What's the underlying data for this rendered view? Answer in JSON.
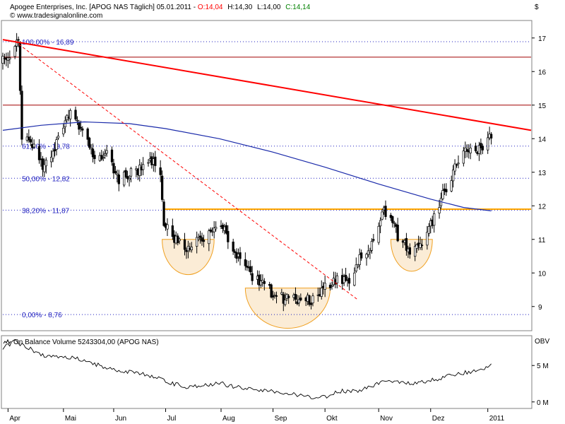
{
  "header": {
    "instrument": "Apogee Enterprises, Inc. [APOG NAS  Täglich] 05.01.2011",
    "open": "O:14,04",
    "high": "H:14,30",
    "low": "L:14,00",
    "close": "C:14,14",
    "website": "© www.tradesignalonline.com"
  },
  "indicator": {
    "title": "On Balance Volume 5243304,00 (APOG NAS)",
    "axis_unit": "OBV"
  },
  "colors": {
    "bullish": "#ffffff",
    "bearish": "#000000",
    "red_trend": "#ff0000",
    "dark_red_line": "#a00000",
    "ma": "#1a2aaa",
    "neckline": "#ffa500",
    "cup_fill": "#fbecd6",
    "cup_stroke": "#f0a020",
    "fib": "#2020c0",
    "open_label": "#ff0000",
    "close_label": "#008000"
  },
  "chart_data": [
    {
      "type": "candlestick",
      "panel": "price",
      "y_unit": "$",
      "ylim": [
        8.3,
        17.5
      ],
      "y_ticks": [
        9,
        10,
        11,
        12,
        13,
        14,
        15,
        16,
        17
      ],
      "x_labels": [
        "Apr",
        "Mai",
        "Jun",
        "Jul",
        "Aug",
        "Sep",
        "Okt",
        "Nov",
        "Dez",
        "2011"
      ],
      "x_label_dates": [
        "2010-04-01",
        "2010-05-03",
        "2010-06-01",
        "2010-07-01",
        "2010-08-02",
        "2010-09-01",
        "2010-10-01",
        "2010-11-01",
        "2010-12-01",
        "2011-01-03"
      ],
      "xlim": [
        "2010-03-29",
        "2011-01-28"
      ],
      "fibonacci_levels": [
        {
          "label": "100,00% - 16,89",
          "value": 16.89
        },
        {
          "label": "61,80% - 13,78",
          "value": 13.78
        },
        {
          "label": "50,00% - 12,82",
          "value": 12.82
        },
        {
          "label": "38,20% - 11,87",
          "value": 11.87
        },
        {
          "label": "0,00% - 8,76",
          "value": 8.76
        }
      ],
      "horizontal_lines": [
        {
          "name": "resistance-16-4",
          "value": 16.43
        },
        {
          "name": "resistance-15",
          "value": 15.0
        },
        {
          "name": "neckline",
          "value": 11.9
        }
      ],
      "trendlines": [
        {
          "name": "long-downtrend",
          "style": "solid",
          "points": [
            [
              "2010-03-29",
              16.95
            ],
            [
              "2011-01-28",
              14.25
            ]
          ]
        },
        {
          "name": "dashed-downtrend",
          "style": "dashed",
          "points": [
            [
              "2010-04-05",
              16.9
            ],
            [
              "2010-10-20",
              9.2
            ]
          ]
        }
      ],
      "moving_average": [
        [
          "2010-03-29",
          14.25
        ],
        [
          "2010-04-20",
          14.4
        ],
        [
          "2010-05-15",
          14.5
        ],
        [
          "2010-06-10",
          14.45
        ],
        [
          "2010-07-01",
          14.3
        ],
        [
          "2010-08-01",
          14.0
        ],
        [
          "2010-09-01",
          13.6
        ],
        [
          "2010-10-01",
          13.15
        ],
        [
          "2010-11-01",
          12.65
        ],
        [
          "2010-12-01",
          12.2
        ],
        [
          "2010-12-20",
          11.95
        ],
        [
          "2011-01-05",
          11.85
        ]
      ],
      "cups": [
        {
          "start": "2010-06-29",
          "end": "2010-07-29",
          "top": 11.0,
          "bottom": 9.95
        },
        {
          "start": "2010-08-16",
          "end": "2010-10-04",
          "top": 9.55,
          "bottom": 8.35
        },
        {
          "start": "2010-11-08",
          "end": "2010-12-02",
          "top": 11.0,
          "bottom": 10.05
        }
      ],
      "anchors": [
        [
          "2010-03-29",
          16.3
        ],
        [
          "2010-04-02",
          16.5
        ],
        [
          "2010-04-07",
          16.85
        ],
        [
          "2010-04-09",
          14.1
        ],
        [
          "2010-04-15",
          13.8
        ],
        [
          "2010-04-22",
          13.1
        ],
        [
          "2010-04-30",
          14.0
        ],
        [
          "2010-05-07",
          14.8
        ],
        [
          "2010-05-14",
          14.2
        ],
        [
          "2010-05-21",
          13.4
        ],
        [
          "2010-05-28",
          13.5
        ],
        [
          "2010-06-04",
          12.8
        ],
        [
          "2010-06-11",
          13.0
        ],
        [
          "2010-06-18",
          13.1
        ],
        [
          "2010-06-24",
          13.4
        ],
        [
          "2010-06-28",
          12.8
        ],
        [
          "2010-06-30",
          11.5
        ],
        [
          "2010-07-06",
          11.0
        ],
        [
          "2010-07-12",
          10.7
        ],
        [
          "2010-07-19",
          11.0
        ],
        [
          "2010-07-26",
          11.1
        ],
        [
          "2010-08-02",
          11.5
        ],
        [
          "2010-08-06",
          11.0
        ],
        [
          "2010-08-13",
          10.4
        ],
        [
          "2010-08-20",
          9.9
        ],
        [
          "2010-08-27",
          9.6
        ],
        [
          "2010-09-03",
          9.3
        ],
        [
          "2010-09-10",
          9.2
        ],
        [
          "2010-09-17",
          9.25
        ],
        [
          "2010-09-24",
          9.2
        ],
        [
          "2010-10-01",
          9.6
        ],
        [
          "2010-10-08",
          9.8
        ],
        [
          "2010-10-15",
          9.8
        ],
        [
          "2010-10-21",
          10.4
        ],
        [
          "2010-10-28",
          10.8
        ],
        [
          "2010-11-04",
          11.8
        ],
        [
          "2010-11-08",
          11.6
        ],
        [
          "2010-11-12",
          11.1
        ],
        [
          "2010-11-19",
          10.6
        ],
        [
          "2010-11-26",
          10.9
        ],
        [
          "2010-12-02",
          11.5
        ],
        [
          "2010-12-08",
          12.3
        ],
        [
          "2010-12-14",
          13.0
        ],
        [
          "2010-12-20",
          13.6
        ],
        [
          "2010-12-27",
          13.6
        ],
        [
          "2011-01-03",
          13.9
        ],
        [
          "2011-01-05",
          14.14
        ]
      ]
    },
    {
      "type": "line",
      "panel": "indicator",
      "name": "On Balance Volume",
      "y_ticks": [
        {
          "label": "5 M",
          "value": 5
        },
        {
          "label": "0 M",
          "value": 0
        }
      ],
      "ylim": [
        -0.8,
        9.0
      ],
      "points": [
        [
          "2010-03-29",
          7.5
        ],
        [
          "2010-04-05",
          8.3
        ],
        [
          "2010-04-12",
          7.5
        ],
        [
          "2010-04-19",
          6.5
        ],
        [
          "2010-04-26",
          6.3
        ],
        [
          "2010-05-03",
          6.0
        ],
        [
          "2010-05-10",
          6.0
        ],
        [
          "2010-05-17",
          5.5
        ],
        [
          "2010-05-24",
          5.0
        ],
        [
          "2010-05-31",
          4.5
        ],
        [
          "2010-06-07",
          4.2
        ],
        [
          "2010-06-14",
          3.9
        ],
        [
          "2010-06-21",
          3.7
        ],
        [
          "2010-06-28",
          3.3
        ],
        [
          "2010-07-05",
          2.5
        ],
        [
          "2010-07-12",
          2.1
        ],
        [
          "2010-07-19",
          2.2
        ],
        [
          "2010-07-26",
          2.3
        ],
        [
          "2010-08-02",
          2.6
        ],
        [
          "2010-08-09",
          2.1
        ],
        [
          "2010-08-16",
          1.9
        ],
        [
          "2010-08-23",
          1.6
        ],
        [
          "2010-08-30",
          1.5
        ],
        [
          "2010-09-06",
          1.3
        ],
        [
          "2010-09-13",
          1.0
        ],
        [
          "2010-09-20",
          0.9
        ],
        [
          "2010-09-27",
          0.4
        ],
        [
          "2010-10-04",
          1.0
        ],
        [
          "2010-10-11",
          1.5
        ],
        [
          "2010-10-18",
          1.4
        ],
        [
          "2010-10-25",
          1.8
        ],
        [
          "2010-11-01",
          2.6
        ],
        [
          "2010-11-08",
          2.9
        ],
        [
          "2010-11-15",
          2.6
        ],
        [
          "2010-11-22",
          2.6
        ],
        [
          "2010-11-29",
          2.8
        ],
        [
          "2010-12-06",
          3.2
        ],
        [
          "2010-12-13",
          3.8
        ],
        [
          "2010-12-20",
          4.0
        ],
        [
          "2010-12-27",
          4.3
        ],
        [
          "2011-01-03",
          4.7
        ],
        [
          "2011-01-05",
          5.24
        ]
      ]
    }
  ]
}
